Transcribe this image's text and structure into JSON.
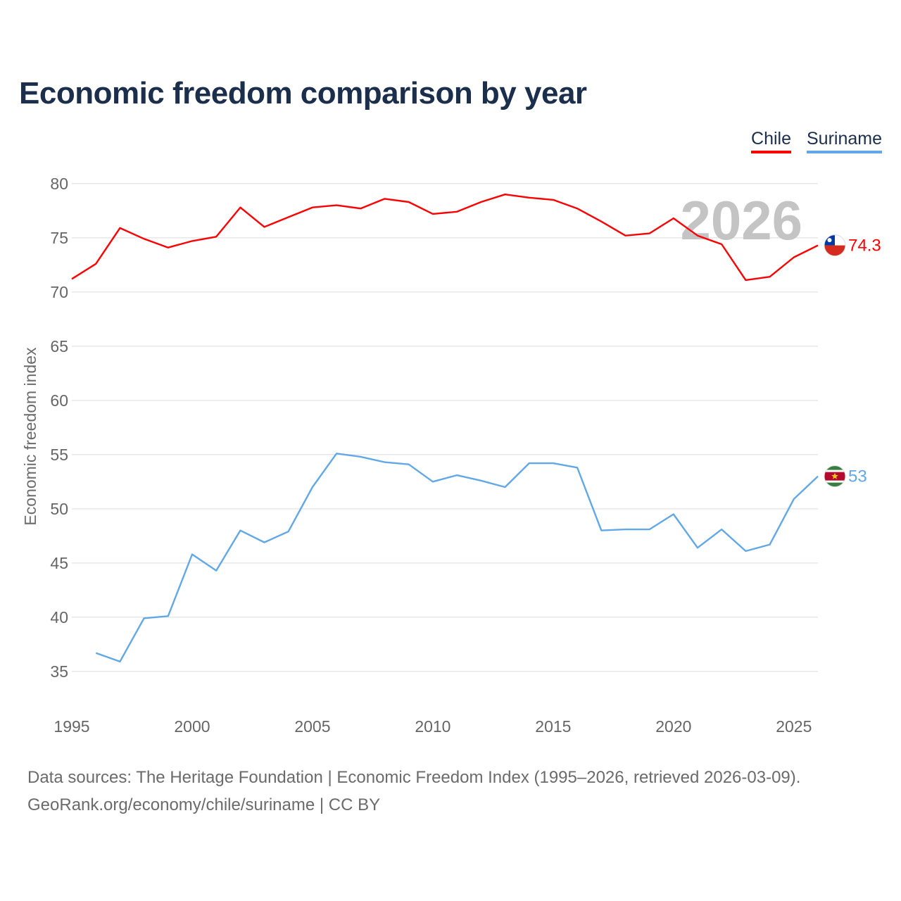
{
  "title": "Economic freedom comparison by year",
  "legend": [
    {
      "label": "Chile",
      "color": "#ff0000"
    },
    {
      "label": "Suriname",
      "color": "#62a8e6"
    }
  ],
  "watermark_year": "2026",
  "footer": {
    "line1": "Data sources: The Heritage Foundation | Economic Freedom Index (1995–2026, retrieved 2026-03-09).",
    "line2": "GeoRank.org/economy/chile/suriname | CC BY"
  },
  "chart_data": {
    "type": "line",
    "title": "Economic freedom comparison by year",
    "xlabel": "",
    "ylabel": "Economic freedom index",
    "xlim": [
      1995,
      2026
    ],
    "ylim": [
      32,
      82
    ],
    "x_ticks": [
      1995,
      2000,
      2005,
      2010,
      2015,
      2020,
      2025
    ],
    "y_ticks": [
      35,
      40,
      45,
      50,
      55,
      60,
      65,
      70,
      75,
      80
    ],
    "grid": true,
    "series": [
      {
        "name": "Chile",
        "color": "#ff0000",
        "end_label": "74.3",
        "flag": "chile",
        "x": [
          1995,
          1996,
          1997,
          1998,
          1999,
          2000,
          2001,
          2002,
          2003,
          2004,
          2005,
          2006,
          2007,
          2008,
          2009,
          2010,
          2011,
          2012,
          2013,
          2014,
          2015,
          2016,
          2017,
          2018,
          2019,
          2020,
          2021,
          2022,
          2023,
          2024,
          2025,
          2026
        ],
        "y": [
          71.2,
          72.6,
          75.9,
          74.9,
          74.1,
          74.7,
          75.1,
          77.8,
          76.0,
          76.9,
          77.8,
          78.0,
          77.7,
          78.6,
          78.3,
          77.2,
          77.4,
          78.3,
          79.0,
          78.7,
          78.5,
          77.7,
          76.5,
          75.2,
          75.4,
          76.8,
          75.2,
          74.4,
          71.1,
          71.4,
          73.2,
          74.3
        ]
      },
      {
        "name": "Suriname",
        "color": "#62a8e6",
        "end_label": "53",
        "flag": "suriname",
        "x": [
          1996,
          1997,
          1998,
          1999,
          2000,
          2001,
          2002,
          2003,
          2004,
          2005,
          2006,
          2007,
          2008,
          2009,
          2010,
          2011,
          2012,
          2013,
          2014,
          2015,
          2016,
          2017,
          2018,
          2019,
          2020,
          2021,
          2022,
          2023,
          2024,
          2025,
          2026
        ],
        "y": [
          36.7,
          35.9,
          39.9,
          40.1,
          45.8,
          44.3,
          48.0,
          46.9,
          47.9,
          52.0,
          55.1,
          54.8,
          54.3,
          54.1,
          52.5,
          53.1,
          52.6,
          52.0,
          54.2,
          54.2,
          53.8,
          48.0,
          48.1,
          48.1,
          49.5,
          46.4,
          48.1,
          46.1,
          46.7,
          50.9,
          53.0
        ]
      }
    ]
  }
}
